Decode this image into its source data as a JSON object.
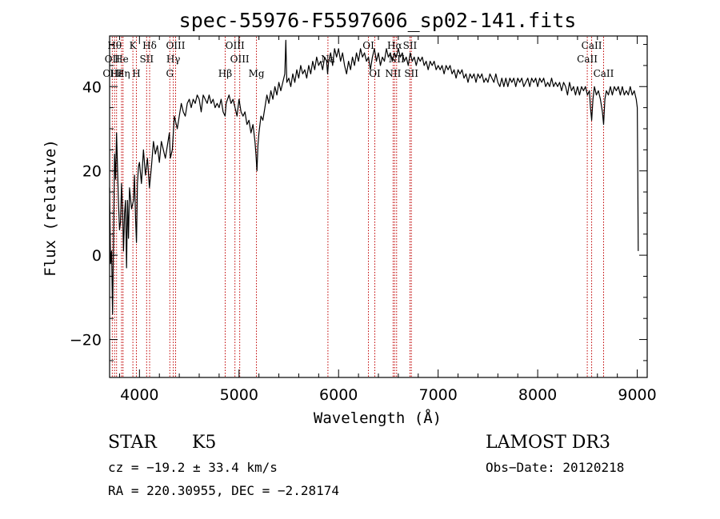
{
  "chart_data": {
    "type": "line",
    "title": "spec-55976-F5597606_sp02-141.fits",
    "xlabel": "Wavelength (Å)",
    "ylabel": "Flux (relative)",
    "xlim": [
      3700,
      9100
    ],
    "ylim": [
      -29,
      52
    ],
    "x_ticks": [
      4000,
      5000,
      6000,
      7000,
      8000,
      9000
    ],
    "y_ticks": [
      -20,
      0,
      20,
      40
    ],
    "x_tick_labels": [
      "4000",
      "5000",
      "6000",
      "7000",
      "8000",
      "9000"
    ],
    "y_tick_labels": [
      "−20",
      "0",
      "20",
      "40"
    ],
    "series": [
      {
        "name": "flux",
        "points": [
          [
            3700,
            16
          ],
          [
            3710,
            -2
          ],
          [
            3720,
            1
          ],
          [
            3730,
            -14
          ],
          [
            3740,
            5
          ],
          [
            3750,
            24
          ],
          [
            3760,
            18
          ],
          [
            3770,
            29
          ],
          [
            3780,
            20
          ],
          [
            3790,
            12
          ],
          [
            3800,
            6
          ],
          [
            3810,
            8
          ],
          [
            3820,
            17
          ],
          [
            3830,
            11
          ],
          [
            3840,
            1
          ],
          [
            3850,
            10
          ],
          [
            3860,
            13
          ],
          [
            3870,
            -3
          ],
          [
            3880,
            13
          ],
          [
            3890,
            4
          ],
          [
            3900,
            16
          ],
          [
            3920,
            11
          ],
          [
            3940,
            13
          ],
          [
            3950,
            19
          ],
          [
            3960,
            9
          ],
          [
            3970,
            3
          ],
          [
            3980,
            17
          ],
          [
            3990,
            21
          ],
          [
            4000,
            22
          ],
          [
            4020,
            17
          ],
          [
            4040,
            25
          ],
          [
            4060,
            19
          ],
          [
            4080,
            23
          ],
          [
            4100,
            16
          ],
          [
            4120,
            21
          ],
          [
            4140,
            27
          ],
          [
            4160,
            24
          ],
          [
            4180,
            26
          ],
          [
            4200,
            22
          ],
          [
            4220,
            27
          ],
          [
            4240,
            25
          ],
          [
            4260,
            23
          ],
          [
            4280,
            26
          ],
          [
            4300,
            29
          ],
          [
            4310,
            23
          ],
          [
            4330,
            25
          ],
          [
            4350,
            33
          ],
          [
            4380,
            30
          ],
          [
            4400,
            33
          ],
          [
            4420,
            36
          ],
          [
            4440,
            34
          ],
          [
            4460,
            33
          ],
          [
            4480,
            36
          ],
          [
            4500,
            37
          ],
          [
            4520,
            35
          ],
          [
            4540,
            37
          ],
          [
            4560,
            36
          ],
          [
            4580,
            38
          ],
          [
            4600,
            37
          ],
          [
            4620,
            34
          ],
          [
            4640,
            38
          ],
          [
            4660,
            37
          ],
          [
            4680,
            36
          ],
          [
            4700,
            38
          ],
          [
            4720,
            36
          ],
          [
            4740,
            37
          ],
          [
            4760,
            35
          ],
          [
            4780,
            36
          ],
          [
            4800,
            35
          ],
          [
            4820,
            37
          ],
          [
            4840,
            34
          ],
          [
            4860,
            33
          ],
          [
            4870,
            36
          ],
          [
            4900,
            38
          ],
          [
            4920,
            36
          ],
          [
            4940,
            37
          ],
          [
            4960,
            35
          ],
          [
            4980,
            33
          ],
          [
            5000,
            37
          ],
          [
            5020,
            34
          ],
          [
            5040,
            33
          ],
          [
            5060,
            34
          ],
          [
            5080,
            31
          ],
          [
            5100,
            32
          ],
          [
            5120,
            29
          ],
          [
            5140,
            31
          ],
          [
            5160,
            27
          ],
          [
            5170,
            24
          ],
          [
            5180,
            20
          ],
          [
            5190,
            26
          ],
          [
            5200,
            29
          ],
          [
            5220,
            33
          ],
          [
            5240,
            32
          ],
          [
            5260,
            35
          ],
          [
            5280,
            38
          ],
          [
            5300,
            36
          ],
          [
            5320,
            39
          ],
          [
            5340,
            37
          ],
          [
            5360,
            40
          ],
          [
            5380,
            38
          ],
          [
            5400,
            41
          ],
          [
            5420,
            39
          ],
          [
            5440,
            41
          ],
          [
            5460,
            43
          ],
          [
            5470,
            51
          ],
          [
            5480,
            41
          ],
          [
            5500,
            42
          ],
          [
            5520,
            40
          ],
          [
            5540,
            43
          ],
          [
            5560,
            41
          ],
          [
            5580,
            44
          ],
          [
            5600,
            42
          ],
          [
            5620,
            45
          ],
          [
            5640,
            43
          ],
          [
            5660,
            44
          ],
          [
            5680,
            42
          ],
          [
            5700,
            45
          ],
          [
            5720,
            43
          ],
          [
            5740,
            46
          ],
          [
            5760,
            44
          ],
          [
            5780,
            47
          ],
          [
            5800,
            45
          ],
          [
            5820,
            46
          ],
          [
            5840,
            44
          ],
          [
            5860,
            47
          ],
          [
            5880,
            46
          ],
          [
            5890,
            43
          ],
          [
            5900,
            46
          ],
          [
            5920,
            48
          ],
          [
            5940,
            45
          ],
          [
            5960,
            49
          ],
          [
            5980,
            47
          ],
          [
            6000,
            49
          ],
          [
            6020,
            46
          ],
          [
            6040,
            48
          ],
          [
            6060,
            45
          ],
          [
            6080,
            43
          ],
          [
            6100,
            46
          ],
          [
            6120,
            44
          ],
          [
            6140,
            47
          ],
          [
            6160,
            45
          ],
          [
            6180,
            48
          ],
          [
            6200,
            46
          ],
          [
            6220,
            49
          ],
          [
            6240,
            47
          ],
          [
            6260,
            48
          ],
          [
            6280,
            46
          ],
          [
            6300,
            47
          ],
          [
            6320,
            44
          ],
          [
            6340,
            47
          ],
          [
            6360,
            49
          ],
          [
            6380,
            46
          ],
          [
            6400,
            48
          ],
          [
            6420,
            45
          ],
          [
            6440,
            47
          ],
          [
            6460,
            46
          ],
          [
            6480,
            49
          ],
          [
            6500,
            47
          ],
          [
            6520,
            48
          ],
          [
            6540,
            46
          ],
          [
            6560,
            48
          ],
          [
            6580,
            47
          ],
          [
            6600,
            49
          ],
          [
            6620,
            47
          ],
          [
            6640,
            48
          ],
          [
            6660,
            46
          ],
          [
            6680,
            47
          ],
          [
            6700,
            45
          ],
          [
            6720,
            48
          ],
          [
            6740,
            46
          ],
          [
            6760,
            47
          ],
          [
            6780,
            45
          ],
          [
            6800,
            47
          ],
          [
            6820,
            46
          ],
          [
            6840,
            47
          ],
          [
            6860,
            45
          ],
          [
            6880,
            46
          ],
          [
            6900,
            44
          ],
          [
            6920,
            46
          ],
          [
            6940,
            45
          ],
          [
            6960,
            46
          ],
          [
            6980,
            44
          ],
          [
            7000,
            45
          ],
          [
            7020,
            44
          ],
          [
            7040,
            45
          ],
          [
            7060,
            43
          ],
          [
            7080,
            45
          ],
          [
            7100,
            44
          ],
          [
            7120,
            45
          ],
          [
            7140,
            43
          ],
          [
            7160,
            44
          ],
          [
            7180,
            42
          ],
          [
            7200,
            44
          ],
          [
            7220,
            43
          ],
          [
            7240,
            44
          ],
          [
            7260,
            42
          ],
          [
            7280,
            43
          ],
          [
            7300,
            41
          ],
          [
            7320,
            43
          ],
          [
            7340,
            42
          ],
          [
            7360,
            43
          ],
          [
            7380,
            41
          ],
          [
            7400,
            43
          ],
          [
            7420,
            42
          ],
          [
            7440,
            43
          ],
          [
            7460,
            41
          ],
          [
            7480,
            42
          ],
          [
            7500,
            41
          ],
          [
            7520,
            43
          ],
          [
            7540,
            42
          ],
          [
            7560,
            41
          ],
          [
            7580,
            43
          ],
          [
            7600,
            41
          ],
          [
            7620,
            40
          ],
          [
            7640,
            42
          ],
          [
            7660,
            40
          ],
          [
            7680,
            42
          ],
          [
            7700,
            40
          ],
          [
            7720,
            42
          ],
          [
            7740,
            41
          ],
          [
            7760,
            42
          ],
          [
            7780,
            40
          ],
          [
            7800,
            42
          ],
          [
            7820,
            41
          ],
          [
            7840,
            42
          ],
          [
            7860,
            40
          ],
          [
            7880,
            41
          ],
          [
            7900,
            42
          ],
          [
            7920,
            40
          ],
          [
            7940,
            42
          ],
          [
            7960,
            41
          ],
          [
            7980,
            42
          ],
          [
            8000,
            40
          ],
          [
            8020,
            42
          ],
          [
            8040,
            41
          ],
          [
            8060,
            42
          ],
          [
            8080,
            40
          ],
          [
            8100,
            41
          ],
          [
            8120,
            40
          ],
          [
            8140,
            42
          ],
          [
            8160,
            40
          ],
          [
            8180,
            41
          ],
          [
            8200,
            40
          ],
          [
            8220,
            41
          ],
          [
            8240,
            39
          ],
          [
            8260,
            41
          ],
          [
            8280,
            40
          ],
          [
            8300,
            38
          ],
          [
            8320,
            41
          ],
          [
            8340,
            39
          ],
          [
            8360,
            40
          ],
          [
            8380,
            38
          ],
          [
            8400,
            40
          ],
          [
            8420,
            38
          ],
          [
            8440,
            40
          ],
          [
            8460,
            39
          ],
          [
            8480,
            40
          ],
          [
            8500,
            38
          ],
          [
            8520,
            39
          ],
          [
            8530,
            35
          ],
          [
            8542,
            32
          ],
          [
            8555,
            37
          ],
          [
            8570,
            40
          ],
          [
            8590,
            38
          ],
          [
            8610,
            39
          ],
          [
            8630,
            37
          ],
          [
            8650,
            34
          ],
          [
            8662,
            31
          ],
          [
            8675,
            37
          ],
          [
            8690,
            39
          ],
          [
            8710,
            38
          ],
          [
            8730,
            40
          ],
          [
            8750,
            38
          ],
          [
            8770,
            40
          ],
          [
            8790,
            39
          ],
          [
            8810,
            40
          ],
          [
            8830,
            38
          ],
          [
            8850,
            40
          ],
          [
            8870,
            38
          ],
          [
            8890,
            39
          ],
          [
            8910,
            38
          ],
          [
            8930,
            40
          ],
          [
            8950,
            38
          ],
          [
            8970,
            39
          ],
          [
            8990,
            37
          ],
          [
            9000,
            35
          ],
          [
            9005,
            20
          ],
          [
            9010,
            1
          ]
        ]
      }
    ],
    "emission_lines": [
      {
        "label": "Hθ",
        "x": 3750,
        "row": 1
      },
      {
        "label": "OII",
        "x": 3727,
        "row": 2
      },
      {
        "label": "OIII",
        "x": 3727,
        "row": 3
      },
      {
        "label": "Hε",
        "x": 3770,
        "row": 3
      },
      {
        "label": "He",
        "x": 3820,
        "row": 2
      },
      {
        "label": "Hη",
        "x": 3835,
        "row": 3
      },
      {
        "label": "K",
        "x": 3934,
        "row": 1
      },
      {
        "label": "H",
        "x": 3969,
        "row": 3
      },
      {
        "label": "SII",
        "x": 4072,
        "row": 2
      },
      {
        "label": "Hδ",
        "x": 4102,
        "row": 1
      },
      {
        "label": "OIII",
        "x": 4363,
        "row": 1
      },
      {
        "label": "Hγ",
        "x": 4340,
        "row": 2
      },
      {
        "label": "G",
        "x": 4305,
        "row": 3
      },
      {
        "label": "Hβ",
        "x": 4861,
        "row": 3
      },
      {
        "label": "OIII",
        "x": 4959,
        "row": 1
      },
      {
        "label": "OIII",
        "x": 5007,
        "row": 2
      },
      {
        "label": "Mg",
        "x": 5175,
        "row": 3
      },
      {
        "label": "Na",
        "x": 5893,
        "row": 2
      },
      {
        "label": "OI",
        "x": 6300,
        "row": 1
      },
      {
        "label": "OI",
        "x": 6364,
        "row": 3
      },
      {
        "label": "Hα",
        "x": 6563,
        "row": 1
      },
      {
        "label": "NII",
        "x": 6583,
        "row": 2
      },
      {
        "label": "NII",
        "x": 6548,
        "row": 3
      },
      {
        "label": "SII",
        "x": 6717,
        "row": 1
      },
      {
        "label": "SII",
        "x": 6731,
        "row": 3
      },
      {
        "label": "CaII",
        "x": 8542,
        "row": 1
      },
      {
        "label": "CaII",
        "x": 8498,
        "row": 2
      },
      {
        "label": "CaII",
        "x": 8662,
        "row": 3
      }
    ],
    "line_color": "#000000",
    "marker_color": "#c00000"
  },
  "info": {
    "class": "STAR",
    "subclass": "K5",
    "survey": "LAMOST DR3",
    "cz": "cz = −19.2 ± 33.4 km/s",
    "obs_date": "Obs−Date: 20120218",
    "coords": "RA = 220.30955, DEC =  −2.28174"
  }
}
